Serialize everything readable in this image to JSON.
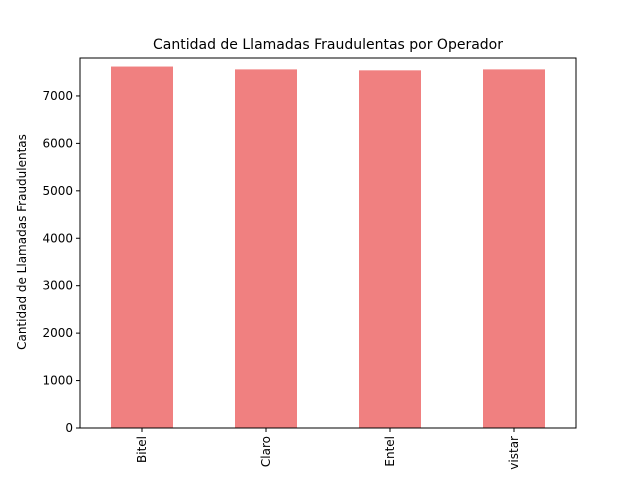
{
  "chart_data": {
    "type": "bar",
    "title": "Cantidad de Llamadas Fraudulentas por Operador",
    "xlabel": "",
    "ylabel": "Cantidad de Llamadas Fraudulentas",
    "categories": [
      "Bitel",
      "Claro",
      "Entel",
      "vistar"
    ],
    "values": [
      7620,
      7560,
      7540,
      7560
    ],
    "ylim": [
      0,
      7800
    ],
    "yticks": [
      0,
      1000,
      2000,
      3000,
      4000,
      5000,
      6000,
      7000
    ],
    "ytick_labels": [
      "0",
      "1000",
      "2000",
      "3000",
      "4000",
      "5000",
      "6000",
      "7000"
    ],
    "bar_color": "#f08080",
    "grid": false,
    "legend": "none"
  }
}
